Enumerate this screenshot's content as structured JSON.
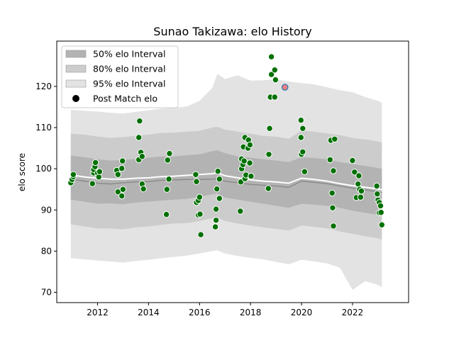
{
  "chart_data": {
    "type": "scatter",
    "title": "Sunao Takizawa: elo History",
    "xlabel": "",
    "ylabel": "elo score",
    "xlim": [
      2010.4,
      2024.2
    ],
    "ylim": [
      67.5,
      131.0
    ],
    "x_ticks": [
      2012,
      2014,
      2016,
      2018,
      2020,
      2022
    ],
    "y_ticks": [
      70,
      80,
      90,
      100,
      110,
      120
    ],
    "legend_position": "top-left",
    "legend": [
      {
        "label": "50% elo Interval",
        "swatch": "band50"
      },
      {
        "label": "80% elo Interval",
        "swatch": "band80"
      },
      {
        "label": "95% elo Interval",
        "swatch": "band95"
      },
      {
        "label": "Post Match elo",
        "swatch": "dot"
      }
    ],
    "colors": {
      "band50": "#b3b3b3",
      "band80": "#cccccc",
      "band95": "#e3e3e3",
      "mean_line": "#8c8c8c",
      "white_line": "#ffffff",
      "points": "#007000",
      "highlight": "#f08080"
    },
    "bands": {
      "x": [
        2010.95,
        2011.5,
        2012.0,
        2012.5,
        2013.0,
        2013.5,
        2014.0,
        2014.5,
        2015.0,
        2015.5,
        2016.0,
        2016.5,
        2016.7,
        2017.0,
        2017.5,
        2018.0,
        2018.5,
        2019.0,
        2019.5,
        2020.0,
        2020.5,
        2021.0,
        2021.5,
        2022.0,
        2022.5,
        2023.0,
        2023.15
      ],
      "p50": [
        [
          92.5,
          103.2
        ],
        [
          92.0,
          102.8
        ],
        [
          91.5,
          102.3
        ],
        [
          91.6,
          102.0
        ],
        [
          91.4,
          102.1
        ],
        [
          91.8,
          102.4
        ],
        [
          92.0,
          102.7
        ],
        [
          92.3,
          103.0
        ],
        [
          92.5,
          103.0
        ],
        [
          92.7,
          103.3
        ],
        [
          93.2,
          103.5
        ],
        [
          93.8,
          104.3
        ],
        [
          94.0,
          104.5
        ],
        [
          93.0,
          103.8
        ],
        [
          92.5,
          103.0
        ],
        [
          92.0,
          102.7
        ],
        [
          91.5,
          102.3
        ],
        [
          91.0,
          102.0
        ],
        [
          90.5,
          101.6
        ],
        [
          91.5,
          102.8
        ],
        [
          91.3,
          102.6
        ],
        [
          91.0,
          102.3
        ],
        [
          90.5,
          101.6
        ],
        [
          89.8,
          101.2
        ],
        [
          89.3,
          100.7
        ],
        [
          88.8,
          100.2
        ],
        [
          88.5,
          100.0
        ]
      ],
      "p80": [
        [
          86.5,
          108.5
        ],
        [
          86.0,
          108.3
        ],
        [
          85.5,
          107.8
        ],
        [
          85.5,
          107.5
        ],
        [
          85.3,
          107.7
        ],
        [
          85.8,
          108.0
        ],
        [
          86.0,
          108.3
        ],
        [
          86.4,
          108.7
        ],
        [
          86.7,
          108.8
        ],
        [
          86.8,
          109.0
        ],
        [
          87.3,
          109.2
        ],
        [
          88.0,
          110.0
        ],
        [
          88.2,
          110.2
        ],
        [
          87.3,
          109.5
        ],
        [
          86.7,
          109.0
        ],
        [
          86.2,
          108.5
        ],
        [
          85.8,
          108.0
        ],
        [
          85.4,
          107.8
        ],
        [
          85.0,
          107.3
        ],
        [
          86.2,
          109.3
        ],
        [
          85.9,
          109.0
        ],
        [
          85.5,
          108.6
        ],
        [
          84.8,
          108.2
        ],
        [
          84.2,
          107.5
        ],
        [
          83.6,
          107.1
        ],
        [
          83.1,
          106.6
        ],
        [
          82.8,
          106.4
        ]
      ],
      "p95": [
        [
          78.3,
          114.3
        ],
        [
          78.0,
          114.1
        ],
        [
          77.7,
          113.9
        ],
        [
          77.5,
          113.6
        ],
        [
          77.2,
          113.4
        ],
        [
          77.6,
          113.8
        ],
        [
          77.9,
          114.2
        ],
        [
          78.3,
          114.6
        ],
        [
          78.6,
          114.8
        ],
        [
          78.9,
          115.1
        ],
        [
          79.4,
          116.5
        ],
        [
          80.0,
          119.6
        ],
        [
          80.2,
          123.0
        ],
        [
          79.4,
          121.8
        ],
        [
          78.8,
          122.7
        ],
        [
          78.4,
          121.4
        ],
        [
          78.0,
          121.5
        ],
        [
          77.4,
          121.7
        ],
        [
          76.8,
          121.2
        ],
        [
          77.9,
          120.8
        ],
        [
          77.5,
          120.5
        ],
        [
          77.0,
          119.8
        ],
        [
          76.0,
          119.1
        ],
        [
          70.6,
          118.6
        ],
        [
          72.7,
          117.4
        ],
        [
          71.8,
          116.5
        ],
        [
          71.2,
          116.0
        ]
      ],
      "mean": [
        97.5,
        97.0,
        96.5,
        96.3,
        96.6,
        96.8,
        96.9,
        97.2,
        97.3,
        97.4,
        97.4,
        97.5,
        97.6,
        97.0,
        96.6,
        96.2,
        96.0,
        95.8,
        95.5,
        97.0,
        96.7,
        96.4,
        95.8,
        95.3,
        94.9,
        94.4,
        94.2
      ],
      "white": [
        98.5,
        98.0,
        97.7,
        97.5,
        97.5,
        97.7,
        97.8,
        98.1,
        98.2,
        98.4,
        98.6,
        98.8,
        99.0,
        98.3,
        97.8,
        97.3,
        97.0,
        96.8,
        96.5,
        97.7,
        97.4,
        97.0,
        96.4,
        95.9,
        95.5,
        95.1,
        94.9
      ]
    },
    "series": [
      {
        "name": "Post Match elo",
        "points": [
          [
            2010.95,
            96.6
          ],
          [
            2011.0,
            97.4
          ],
          [
            2011.05,
            98.1
          ],
          [
            2011.05,
            98.6
          ],
          [
            2011.8,
            96.4
          ],
          [
            2011.85,
            99.0
          ],
          [
            2011.85,
            99.8
          ],
          [
            2011.9,
            100.5
          ],
          [
            2011.92,
            101.5
          ],
          [
            2012.0,
            99.0
          ],
          [
            2012.05,
            98.0
          ],
          [
            2012.08,
            99.3
          ],
          [
            2012.75,
            99.6
          ],
          [
            2012.8,
            98.6
          ],
          [
            2012.8,
            94.4
          ],
          [
            2012.95,
            93.4
          ],
          [
            2012.95,
            100.1
          ],
          [
            2012.98,
            101.9
          ],
          [
            2013.0,
            95.0
          ],
          [
            2013.62,
            102.2
          ],
          [
            2013.62,
            107.6
          ],
          [
            2013.65,
            111.6
          ],
          [
            2013.7,
            104.0
          ],
          [
            2013.75,
            103.0
          ],
          [
            2013.75,
            96.3
          ],
          [
            2013.8,
            95.1
          ],
          [
            2014.7,
            88.9
          ],
          [
            2014.72,
            95.0
          ],
          [
            2014.75,
            102.1
          ],
          [
            2014.8,
            97.5
          ],
          [
            2014.82,
            103.7
          ],
          [
            2015.85,
            98.6
          ],
          [
            2015.88,
            96.9
          ],
          [
            2015.88,
            91.8
          ],
          [
            2015.95,
            92.3
          ],
          [
            2015.95,
            88.8
          ],
          [
            2016.0,
            93.1
          ],
          [
            2016.02,
            89.0
          ],
          [
            2016.05,
            84.0
          ],
          [
            2016.62,
            85.9
          ],
          [
            2016.65,
            87.5
          ],
          [
            2016.65,
            90.2
          ],
          [
            2016.68,
            95.1
          ],
          [
            2016.72,
            99.4
          ],
          [
            2016.78,
            97.5
          ],
          [
            2016.78,
            92.8
          ],
          [
            2017.6,
            89.7
          ],
          [
            2017.62,
            96.8
          ],
          [
            2017.65,
            102.4
          ],
          [
            2017.65,
            100.0
          ],
          [
            2017.7,
            101.0
          ],
          [
            2017.72,
            105.3
          ],
          [
            2017.75,
            101.9
          ],
          [
            2017.78,
            107.6
          ],
          [
            2017.78,
            97.6
          ],
          [
            2017.82,
            98.5
          ],
          [
            2017.9,
            105.0
          ],
          [
            2017.92,
            107.0
          ],
          [
            2017.97,
            101.4
          ],
          [
            2017.98,
            105.8
          ],
          [
            2018.02,
            98.2
          ],
          [
            2018.7,
            95.2
          ],
          [
            2018.72,
            103.5
          ],
          [
            2018.75,
            109.8
          ],
          [
            2018.78,
            117.4
          ],
          [
            2018.82,
            122.9
          ],
          [
            2018.82,
            127.2
          ],
          [
            2018.95,
            117.4
          ],
          [
            2018.95,
            124.0
          ],
          [
            2018.98,
            121.6
          ],
          [
            2019.98,
            111.8
          ],
          [
            2019.98,
            107.6
          ],
          [
            2020.0,
            103.5
          ],
          [
            2020.05,
            109.8
          ],
          [
            2020.05,
            104.1
          ],
          [
            2020.12,
            99.3
          ],
          [
            2021.12,
            102.2
          ],
          [
            2021.15,
            106.9
          ],
          [
            2021.2,
            94.1
          ],
          [
            2021.22,
            90.5
          ],
          [
            2021.25,
            86.1
          ],
          [
            2021.25,
            99.5
          ],
          [
            2021.3,
            107.2
          ],
          [
            2022.0,
            102.0
          ],
          [
            2022.08,
            99.2
          ],
          [
            2022.15,
            93.0
          ],
          [
            2022.22,
            96.3
          ],
          [
            2022.25,
            98.3
          ],
          [
            2022.28,
            95.0
          ],
          [
            2022.32,
            93.1
          ],
          [
            2022.35,
            94.6
          ],
          [
            2022.95,
            95.8
          ],
          [
            2022.97,
            93.9
          ],
          [
            2023.0,
            92.4
          ],
          [
            2023.05,
            89.3
          ],
          [
            2023.05,
            91.8
          ],
          [
            2023.1,
            91.0
          ],
          [
            2023.12,
            89.4
          ],
          [
            2023.15,
            86.4
          ]
        ]
      }
    ],
    "highlight_point": [
      2019.35,
      119.8
    ]
  }
}
